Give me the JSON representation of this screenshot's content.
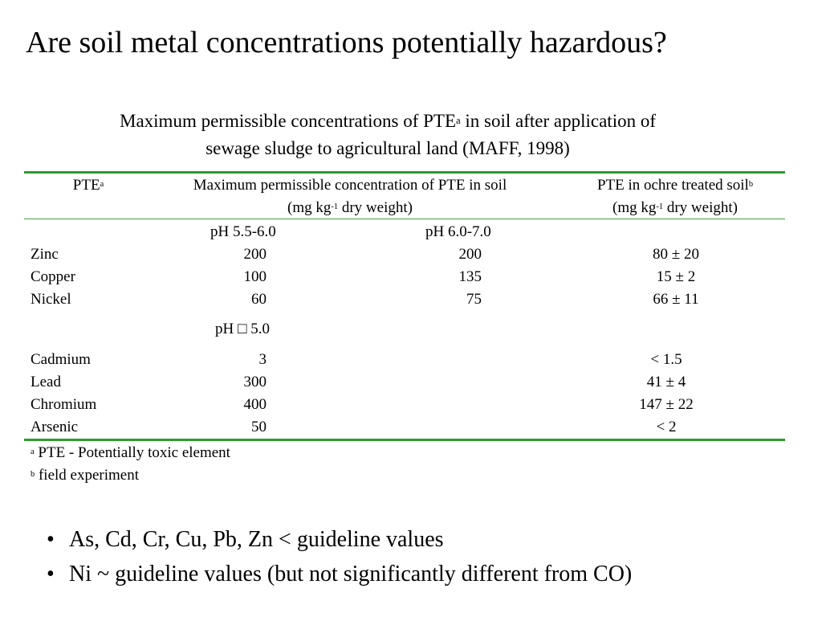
{
  "slide": {
    "title": "Are soil metal concentrations potentially hazardous?",
    "caption": {
      "line1_pre": "Maximum permissible concentrations of PTE",
      "line1_sup": "a",
      "line1_post": " in soil after application of",
      "line2": "sewage sludge to agricultural land (MAFF, 1998)"
    }
  },
  "table": {
    "headers": {
      "pte": "PTE",
      "pte_sup": "a",
      "max_line1": "Maximum permissible concentration of PTE in soil",
      "max_line2_pre": "(mg kg",
      "max_line2_sup": "-1",
      "max_line2_post": " dry weight)",
      "ochre_line1": "PTE in ochre treated soil",
      "ochre_sup": "b",
      "ochre_line2_pre": "(mg kg",
      "ochre_line2_sup": "-1",
      "ochre_line2_post": " dry weight)"
    },
    "subheaders": {
      "ph1": "pH 5.5-6.0",
      "ph2": "pH 6.0-7.0",
      "ph3_prefix": "pH",
      "ph3_symbol": "□",
      "ph3_value": "5.0"
    },
    "group1": [
      {
        "element": "Zinc",
        "ph55": "200",
        "ph60": "200",
        "ochre": "80 ± 20"
      },
      {
        "element": "Copper",
        "ph55": "100",
        "ph60": "135",
        "ochre": "15 ± 2"
      },
      {
        "element": "Nickel",
        "ph55": "60",
        "ph60": "75",
        "ochre": "66 ± 11"
      }
    ],
    "group2": [
      {
        "element": "Cadmium",
        "ph50": "3",
        "ochre": "< 1.5"
      },
      {
        "element": "Lead",
        "ph50": "300",
        "ochre": "41 ± 4"
      },
      {
        "element": "Chromium",
        "ph50": "400",
        "ochre": "147 ± 22"
      },
      {
        "element": "Arsenic",
        "ph50": "50",
        "ochre": "< 2"
      }
    ]
  },
  "footnotes": {
    "a_mark": "a",
    "a_text": " PTE - Potentially toxic element",
    "b_mark": "b",
    "b_text": " field experiment"
  },
  "bullets": {
    "marker": "•",
    "items": [
      "As, Cd, Cr, Cu, Pb, Zn < guideline values",
      "Ni ~ guideline values (but not significantly different from CO)"
    ]
  },
  "colors": {
    "rule": "#2e9b2e"
  }
}
